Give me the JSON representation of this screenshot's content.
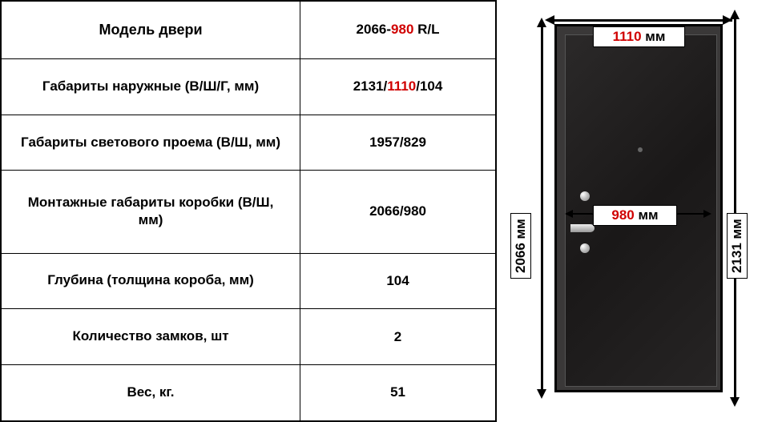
{
  "table": {
    "rows": [
      {
        "label": "Модель двери",
        "value_parts": [
          "2066-",
          "980",
          " R/L"
        ],
        "red_idx": 1,
        "header": true
      },
      {
        "label": "Габариты наружные (В/Ш/Г, мм)",
        "value_parts": [
          "2131/",
          "1110",
          "/104"
        ],
        "red_idx": 1,
        "header": false
      },
      {
        "label": "Габариты светового проема (В/Ш, мм)",
        "value_parts": [
          "1957/829"
        ],
        "red_idx": -1,
        "header": false
      },
      {
        "label": "Монтажные габариты коробки (В/Ш, мм)",
        "value_parts": [
          "2066/980"
        ],
        "red_idx": -1,
        "header": false
      },
      {
        "label": "Глубина (толщина короба, мм)",
        "value_parts": [
          "104"
        ],
        "red_idx": -1,
        "header": false
      },
      {
        "label": "Количество замков, шт",
        "value_parts": [
          "2"
        ],
        "red_idx": -1,
        "header": false
      },
      {
        "label": "Вес, кг.",
        "value_parts": [
          "51"
        ],
        "red_idx": -1,
        "header": false
      }
    ]
  },
  "diagram": {
    "top_width": {
      "value": "1110",
      "unit": " мм",
      "red": true
    },
    "mid_width": {
      "value": "980",
      "unit": " мм",
      "red": true
    },
    "left_height": {
      "value": "2066 мм",
      "red": false
    },
    "right_height": {
      "value": "2131 мм",
      "red": false
    }
  },
  "colors": {
    "red": "#d00000",
    "black": "#000000",
    "door_dark": "#1a1818"
  }
}
